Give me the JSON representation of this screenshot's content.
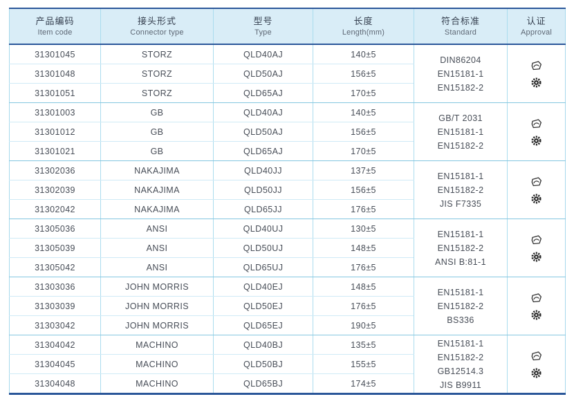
{
  "table": {
    "headers": [
      {
        "zh": "产品编码",
        "en": "Item code"
      },
      {
        "zh": "接头形式",
        "en": "Connector type"
      },
      {
        "zh": "型号",
        "en": "Type"
      },
      {
        "zh": "长度",
        "en": "Length(mm)"
      },
      {
        "zh": "符合标准",
        "en": "Standard"
      },
      {
        "zh": "认证",
        "en": "Approval"
      }
    ],
    "groups": [
      {
        "connector_type": "STORZ",
        "rows": [
          {
            "item_code": "31301045",
            "type": "QLD40AJ",
            "length": "140±5"
          },
          {
            "item_code": "31301048",
            "type": "QLD50AJ",
            "length": "156±5"
          },
          {
            "item_code": "31301051",
            "type": "QLD65AJ",
            "length": "170±5"
          }
        ],
        "standards": [
          "DIN86204",
          "EN15181-1",
          "EN15182-2"
        ],
        "approval_icons": [
          "type-approval-badge-icon",
          "certification-gear-icon"
        ]
      },
      {
        "connector_type": "GB",
        "rows": [
          {
            "item_code": "31301003",
            "type": "QLD40AJ",
            "length": "140±5"
          },
          {
            "item_code": "31301012",
            "type": "QLD50AJ",
            "length": "156±5"
          },
          {
            "item_code": "31301021",
            "type": "QLD65AJ",
            "length": "170±5"
          }
        ],
        "standards": [
          "GB/T 2031",
          "EN15181-1",
          "EN15182-2"
        ],
        "approval_icons": [
          "type-approval-badge-icon",
          "certification-gear-icon"
        ]
      },
      {
        "connector_type": "NAKAJIMA",
        "rows": [
          {
            "item_code": "31302036",
            "type": "QLD40JJ",
            "length": "137±5"
          },
          {
            "item_code": "31302039",
            "type": "QLD50JJ",
            "length": "156±5"
          },
          {
            "item_code": "31302042",
            "type": "QLD65JJ",
            "length": "176±5"
          }
        ],
        "standards": [
          "EN15181-1",
          "EN15182-2",
          "JIS F7335"
        ],
        "approval_icons": [
          "type-approval-badge-icon",
          "certification-gear-icon"
        ]
      },
      {
        "connector_type": "ANSI",
        "rows": [
          {
            "item_code": "31305036",
            "type": "QLD40UJ",
            "length": "130±5"
          },
          {
            "item_code": "31305039",
            "type": "QLD50UJ",
            "length": "148±5"
          },
          {
            "item_code": "31305042",
            "type": "QLD65UJ",
            "length": "176±5"
          }
        ],
        "standards": [
          "EN15181-1",
          "EN15182-2",
          "ANSI B:81-1"
        ],
        "approval_icons": [
          "type-approval-badge-icon",
          "certification-gear-icon"
        ]
      },
      {
        "connector_type": "JOHN MORRIS",
        "rows": [
          {
            "item_code": "31303036",
            "type": "QLD40EJ",
            "length": "148±5"
          },
          {
            "item_code": "31303039",
            "type": "QLD50EJ",
            "length": "176±5"
          },
          {
            "item_code": "31303042",
            "type": "QLD65EJ",
            "length": "190±5"
          }
        ],
        "standards": [
          "EN15181-1",
          "EN15182-2",
          "BS336"
        ],
        "approval_icons": [
          "type-approval-badge-icon",
          "certification-gear-icon"
        ]
      },
      {
        "connector_type": "MACHINO",
        "rows": [
          {
            "item_code": "31304042",
            "type": "QLD40BJ",
            "length": "135±5"
          },
          {
            "item_code": "31304045",
            "type": "QLD50BJ",
            "length": "155±5"
          },
          {
            "item_code": "31304048",
            "type": "QLD65BJ",
            "length": "174±5"
          }
        ],
        "standards": [
          "EN15181-1",
          "EN15182-2",
          "GB12514.3",
          "JIS B9911"
        ],
        "approval_icons": [
          "type-approval-badge-icon",
          "certification-gear-icon"
        ]
      }
    ]
  },
  "colors": {
    "accent_line": "#2a5699",
    "header_bg": "#d9edf7",
    "grid_light": "#aadcee",
    "grid_row": "#cfeaf6",
    "grid_group": "#83c6e0",
    "text": "#474d57",
    "icon": "#333333"
  }
}
